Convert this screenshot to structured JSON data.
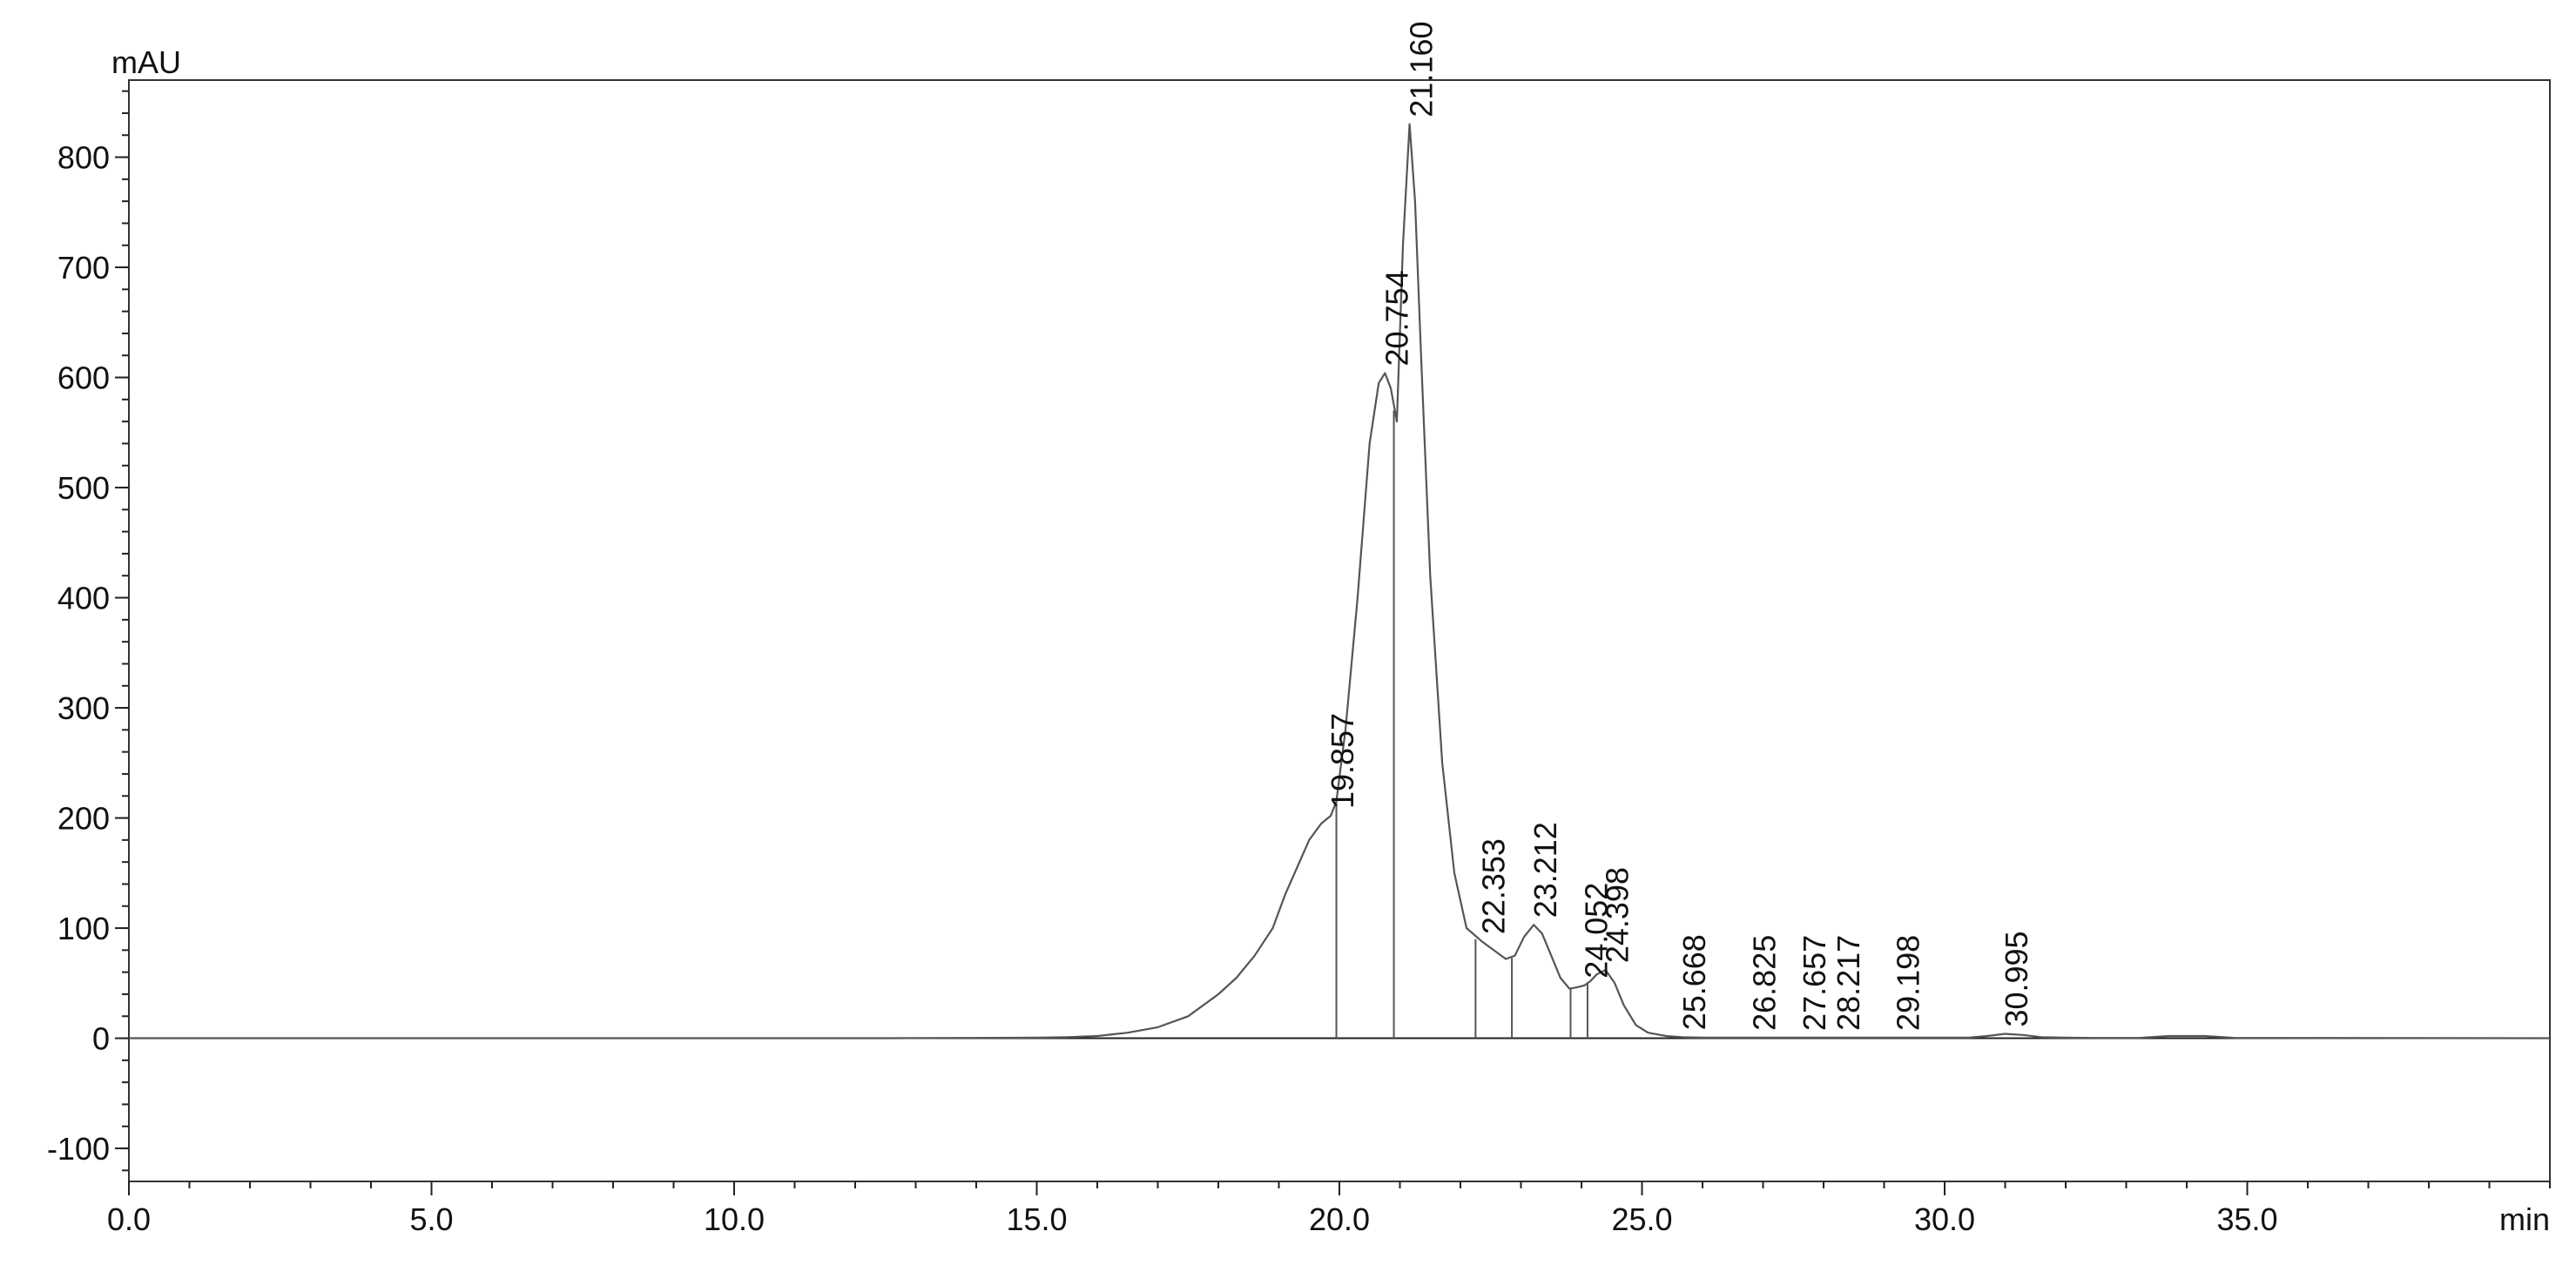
{
  "chart_data": {
    "type": "line",
    "x_unit": "min",
    "y_unit": "mAU",
    "xlim": [
      0,
      40
    ],
    "ylim": [
      -130,
      870
    ],
    "x_ticks": [
      {
        "value": 0,
        "label": "0.0"
      },
      {
        "value": 5,
        "label": "5.0"
      },
      {
        "value": 10,
        "label": "10.0"
      },
      {
        "value": 15,
        "label": "15.0"
      },
      {
        "value": 20,
        "label": "20.0"
      },
      {
        "value": 25,
        "label": "25.0"
      },
      {
        "value": 30,
        "label": "30.0"
      },
      {
        "value": 35,
        "label": "35.0"
      }
    ],
    "y_ticks": [
      {
        "value": -100,
        "label": "-100"
      },
      {
        "value": 0,
        "label": "0"
      },
      {
        "value": 100,
        "label": "100"
      },
      {
        "value": 200,
        "label": "200"
      },
      {
        "value": 300,
        "label": "300"
      },
      {
        "value": 400,
        "label": "400"
      },
      {
        "value": 500,
        "label": "500"
      },
      {
        "value": 600,
        "label": "600"
      },
      {
        "value": 700,
        "label": "700"
      },
      {
        "value": 800,
        "label": "800"
      }
    ],
    "grid": false,
    "baseline": 0,
    "series": [
      {
        "x": [
          0,
          12.5,
          15.0,
          15.5,
          16.0,
          16.5,
          17.0,
          17.5,
          18.0,
          18.3,
          18.6,
          18.9,
          19.1,
          19.3,
          19.5,
          19.7,
          19.857,
          19.95,
          20.1,
          20.3,
          20.5,
          20.65,
          20.754,
          20.85,
          20.95,
          21.05,
          21.16,
          21.25,
          21.35,
          21.5,
          21.7,
          21.9,
          22.1,
          22.353,
          22.55,
          22.75,
          22.9,
          23.05,
          23.212,
          23.35,
          23.5,
          23.65,
          23.8,
          23.9,
          24.052,
          24.15,
          24.25,
          24.398,
          24.55,
          24.7,
          24.9,
          25.1,
          25.4,
          25.668,
          26.0,
          26.825,
          27.657,
          28.217,
          29.198,
          30.4,
          30.7,
          30.995,
          31.3,
          31.6,
          32.0,
          32.5,
          33.2,
          33.7,
          34.3,
          34.8,
          40.0
        ],
        "y": [
          0,
          0,
          0.5,
          1,
          2,
          5,
          10,
          20,
          40,
          55,
          75,
          100,
          130,
          155,
          180,
          195,
          202,
          215,
          280,
          400,
          540,
          595,
          604,
          590,
          560,
          720,
          830,
          760,
          620,
          420,
          250,
          150,
          100,
          88,
          80,
          72,
          75,
          92,
          103,
          95,
          75,
          55,
          45,
          46,
          48,
          52,
          58,
          62,
          50,
          30,
          12,
          5,
          2,
          1,
          0.5,
          0.5,
          0.5,
          0.5,
          0.5,
          0.5,
          2,
          4,
          3,
          1,
          0.5,
          0.3,
          0.3,
          2,
          2,
          0.3,
          0
        ]
      }
    ],
    "peaks": [
      {
        "label": "19.857",
        "x": 19.857,
        "y": 202
      },
      {
        "label": "20.754",
        "x": 20.754,
        "y": 604
      },
      {
        "label": "21.160",
        "x": 21.16,
        "y": 830
      },
      {
        "label": "22.353",
        "x": 22.353,
        "y": 88
      },
      {
        "label": "23.212",
        "x": 23.212,
        "y": 103
      },
      {
        "label": "24.052",
        "x": 24.052,
        "y": 48
      },
      {
        "label": "24.398",
        "x": 24.398,
        "y": 62
      },
      {
        "label": "25.668",
        "x": 25.668,
        "y": 1
      },
      {
        "label": "26.825",
        "x": 26.825,
        "y": 0.5
      },
      {
        "label": "27.657",
        "x": 27.657,
        "y": 0.5
      },
      {
        "label": "28.217",
        "x": 28.217,
        "y": 0.5
      },
      {
        "label": "29.198",
        "x": 29.198,
        "y": 0.5
      },
      {
        "label": "30.995",
        "x": 30.995,
        "y": 4
      }
    ],
    "integration_drops": [
      {
        "x": 19.95,
        "y": 215
      },
      {
        "x": 20.9,
        "y": 570
      },
      {
        "x": 22.25,
        "y": 90
      },
      {
        "x": 22.85,
        "y": 73
      },
      {
        "x": 23.82,
        "y": 45
      },
      {
        "x": 24.1,
        "y": 50
      }
    ]
  },
  "colors": {
    "trace": "#555555",
    "axis": "#222222",
    "frame": "#333333",
    "baseline": "#222222"
  }
}
